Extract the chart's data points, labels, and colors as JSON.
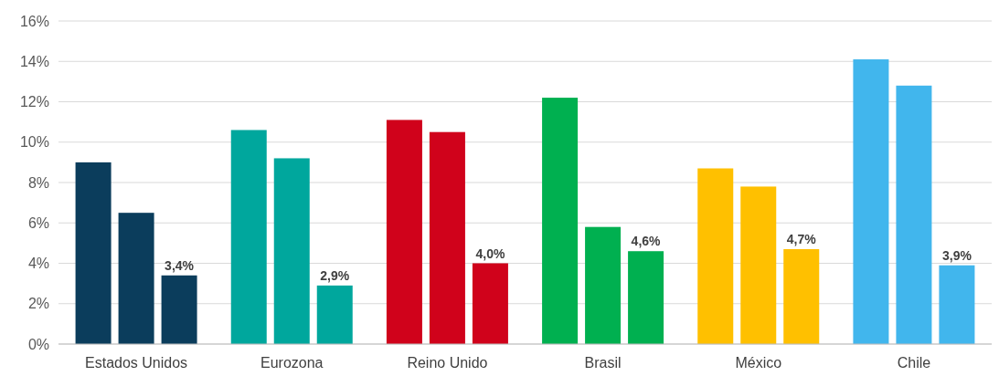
{
  "chart_data": {
    "type": "bar",
    "categories": [
      "Estados Unidos",
      "Eurozona",
      "Reino Unido",
      "Brasil",
      "México",
      "Chile"
    ],
    "series": [
      {
        "colors": [
          "#0b3d5c",
          "#00a79d",
          "#d0021b",
          "#00b050",
          "#ffc000",
          "#41b6ed"
        ],
        "values": [
          9.0,
          10.6,
          11.1,
          12.2,
          8.7,
          14.1
        ]
      },
      {
        "colors": [
          "#0b3d5c",
          "#00a79d",
          "#d0021b",
          "#00b050",
          "#ffc000",
          "#41b6ed"
        ],
        "values": [
          6.5,
          9.2,
          10.5,
          5.8,
          7.8,
          12.8
        ]
      },
      {
        "colors": [
          "#0b3d5c",
          "#00a79d",
          "#d0021b",
          "#00b050",
          "#ffc000",
          "#41b6ed"
        ],
        "values": [
          3.4,
          2.9,
          4.0,
          4.6,
          4.7,
          3.9
        ],
        "value_labels": [
          "3,4%",
          "2,9%",
          "4,0%",
          "4,6%",
          "4,7%",
          "3,9%"
        ]
      }
    ],
    "ylim": [
      0,
      16
    ],
    "yticks": [
      {
        "value": 0,
        "label": "0%"
      },
      {
        "value": 2,
        "label": "2%"
      },
      {
        "value": 4,
        "label": "4%"
      },
      {
        "value": 6,
        "label": "6%"
      },
      {
        "value": 8,
        "label": "8%"
      },
      {
        "value": 10,
        "label": "10%"
      },
      {
        "value": 12,
        "label": "12%"
      },
      {
        "value": 14,
        "label": "14%"
      },
      {
        "value": 16,
        "label": "16%"
      }
    ],
    "grid": "y"
  }
}
